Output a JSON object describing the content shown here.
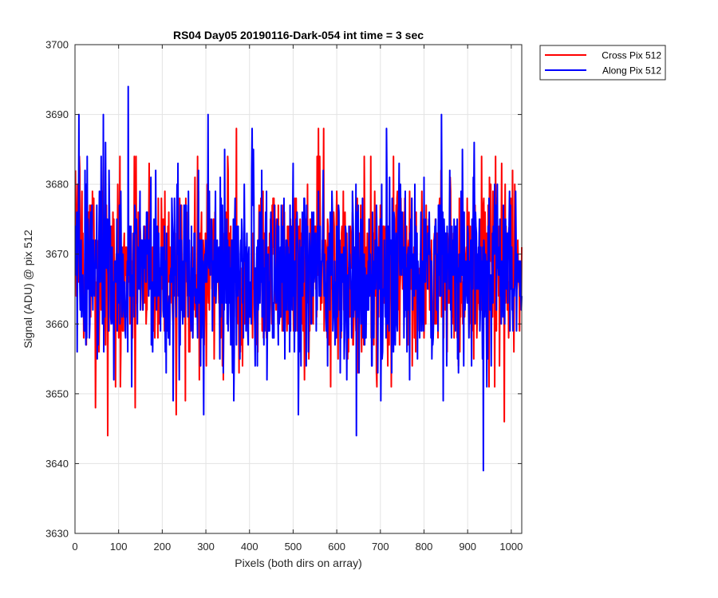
{
  "chart_data": {
    "type": "line",
    "title": "RS04 Day05 20190116-Dark-054 int time = 3 sec",
    "xlabel": "Pixels (both dirs on array)",
    "ylabel": "Signal (ADU) @ pix 512",
    "xlim": [
      0,
      1024
    ],
    "ylim": [
      3630,
      3700
    ],
    "xticks": [
      0,
      100,
      200,
      300,
      400,
      500,
      600,
      700,
      800,
      900,
      1000
    ],
    "yticks": [
      3630,
      3640,
      3650,
      3660,
      3670,
      3680,
      3690,
      3700
    ],
    "grid": true,
    "legend_position": "outside top-right",
    "x_range": [
      1,
      1024
    ],
    "series": [
      {
        "name": "Cross Pix 512",
        "color": "#ff0000",
        "stats": {
          "mean": 3667.5,
          "std": 6.5,
          "min": 3644,
          "max": 3688
        },
        "notable_points": [
          {
            "x": 75,
            "y": 3644
          },
          {
            "x": 232,
            "y": 3647
          },
          {
            "x": 370,
            "y": 3688
          },
          {
            "x": 558,
            "y": 3688
          },
          {
            "x": 570,
            "y": 3688
          },
          {
            "x": 984,
            "y": 3646
          }
        ]
      },
      {
        "name": "Along Pix 512",
        "color": "#0000ff",
        "stats": {
          "mean": 3667.5,
          "std": 6.5,
          "min": 3639,
          "max": 3694
        },
        "notable_points": [
          {
            "x": 65,
            "y": 3690
          },
          {
            "x": 122,
            "y": 3694
          },
          {
            "x": 295,
            "y": 3647
          },
          {
            "x": 512,
            "y": 3647
          },
          {
            "x": 645,
            "y": 3644
          },
          {
            "x": 840,
            "y": 3690
          },
          {
            "x": 936,
            "y": 3639
          }
        ]
      }
    ]
  }
}
